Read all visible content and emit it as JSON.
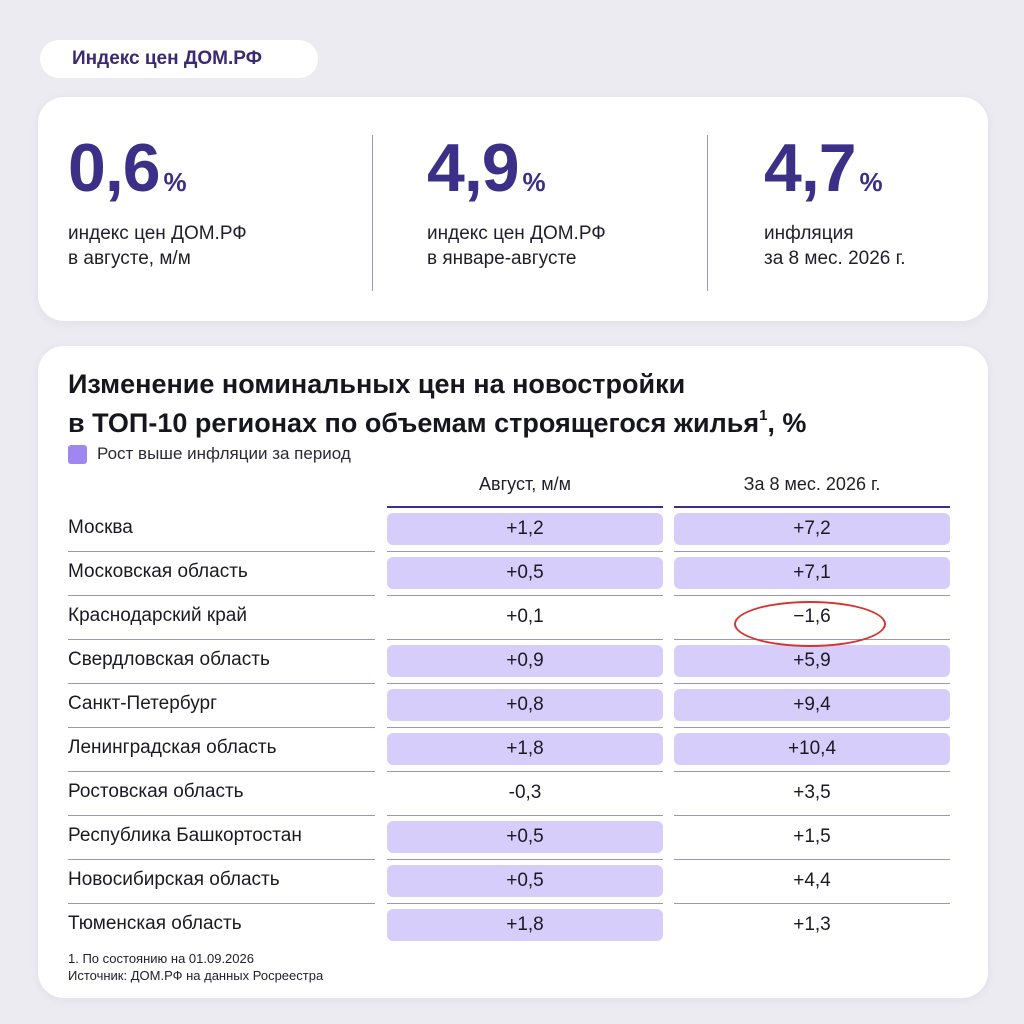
{
  "tag": "Индекс цен ДОМ.РФ",
  "stats": [
    {
      "value": "0,6",
      "unit": "%",
      "line1": "индекс цен ДОМ.РФ",
      "line2": "в августе, м/м"
    },
    {
      "value": "4,9",
      "unit": "%",
      "line1": "индекс цен ДОМ.РФ",
      "line2": "в январе-августе"
    },
    {
      "value": "4,7",
      "unit": "%",
      "line1": "инфляция",
      "line2": "за 8 мес. 2026 г."
    }
  ],
  "table": {
    "title_line1": "Изменение номинальных цен на новостройки",
    "title_line2": "в ТОП-10 регионах по объемам строящегося жилья",
    "title_sup": "1",
    "title_suffix": ", %",
    "legend": "Рост выше инфляции за период",
    "highlight_color": "#d7cdfb",
    "columns": [
      "Август, м/м",
      "За 8 мес. 2026 г."
    ],
    "rows": [
      {
        "region": "Москва",
        "aug": "+1,2",
        "aug_hl": true,
        "ytd": "+7,2",
        "ytd_hl": true
      },
      {
        "region": "Московская область",
        "aug": "+0,5",
        "aug_hl": true,
        "ytd": "+7,1",
        "ytd_hl": true
      },
      {
        "region": "Краснодарский край",
        "aug": "+0,1",
        "aug_hl": false,
        "ytd": "−1,6",
        "ytd_hl": false
      },
      {
        "region": "Свердловская область",
        "aug": "+0,9",
        "aug_hl": true,
        "ytd": "+5,9",
        "ytd_hl": true
      },
      {
        "region": "Санкт-Петербург",
        "aug": "+0,8",
        "aug_hl": true,
        "ytd": "+9,4",
        "ytd_hl": true
      },
      {
        "region": "Ленинградская область",
        "aug": "+1,8",
        "aug_hl": true,
        "ytd": "+10,4",
        "ytd_hl": true
      },
      {
        "region": "Ростовская область",
        "aug": "-0,3",
        "aug_hl": false,
        "ytd": "+3,5",
        "ytd_hl": false
      },
      {
        "region": "Республика Башкортостан",
        "aug": "+0,5",
        "aug_hl": true,
        "ytd": "+1,5",
        "ytd_hl": false
      },
      {
        "region": "Новосибирская область",
        "aug": "+0,5",
        "aug_hl": true,
        "ytd": "+4,4",
        "ytd_hl": false
      },
      {
        "region": "Тюменская область",
        "aug": "+1,8",
        "aug_hl": true,
        "ytd": "+1,3",
        "ytd_hl": false
      }
    ],
    "footnote": "1. По состоянию на 01.09.2026",
    "source": "Источник: ДОМ.РФ на данных Росреестра"
  }
}
